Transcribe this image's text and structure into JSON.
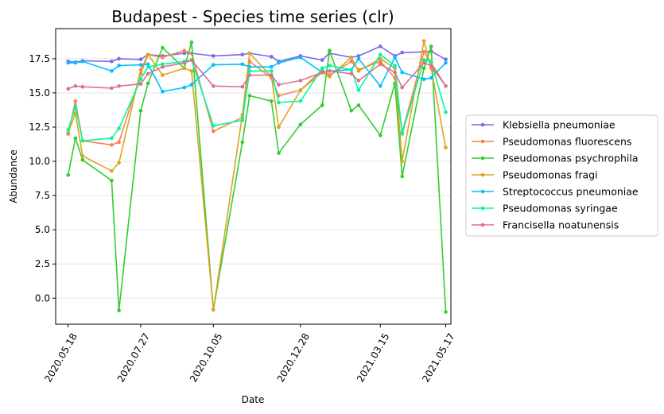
{
  "chart_data": {
    "type": "line",
    "title": "Budapest - Species time series (clr)",
    "xlabel": "Date",
    "ylabel": "Abundance",
    "xlim": [
      "2020-05-06",
      "2021-05-22"
    ],
    "ylim": [
      -1.9,
      19.7
    ],
    "y_ticks": [
      0.0,
      2.5,
      5.0,
      7.5,
      10.0,
      12.5,
      15.0,
      17.5
    ],
    "y_tick_labels": [
      "0.0",
      "2.5",
      "5.0",
      "7.5",
      "10.0",
      "12.5",
      "15.0",
      "17.5"
    ],
    "x_ticks": [
      "2020-05-18",
      "2020-07-27",
      "2020-10-05",
      "2020-12-28",
      "2021-03-15",
      "2021-05-17"
    ],
    "x_tick_labels": [
      "2020.05.18",
      "2020.07.27",
      "2020.10.05",
      "2020.12.28",
      "2021.03.15",
      "2021.05.17"
    ],
    "x_tick_rotation": 60,
    "grid": "horizontal",
    "legend_position": "outside-right",
    "x": [
      "2020-05-18",
      "2020-05-25",
      "2020-06-01",
      "2020-06-29",
      "2020-07-06",
      "2020-07-27",
      "2020-08-03",
      "2020-08-17",
      "2020-09-07",
      "2020-09-14",
      "2020-10-05",
      "2020-11-02",
      "2020-11-09",
      "2020-11-30",
      "2020-12-07",
      "2020-12-28",
      "2021-01-18",
      "2021-01-25",
      "2021-02-15",
      "2021-02-22",
      "2021-03-15",
      "2021-03-29",
      "2021-04-05",
      "2021-04-26",
      "2021-05-03",
      "2021-05-17"
    ],
    "series": [
      {
        "name": "Klebsiella pneumoniae",
        "color": "#7b68ee",
        "values": [
          17.3,
          17.25,
          17.35,
          17.3,
          17.5,
          17.45,
          17.8,
          17.7,
          17.9,
          17.9,
          17.7,
          17.8,
          17.9,
          17.65,
          17.3,
          17.7,
          17.4,
          17.9,
          17.6,
          17.7,
          18.4,
          17.7,
          17.95,
          18.0,
          18.05,
          17.45
        ]
      },
      {
        "name": "Pseudomonas fluorescens",
        "color": "#fa8050",
        "values": [
          12.0,
          14.4,
          11.5,
          11.2,
          11.4,
          16.4,
          17.8,
          17.6,
          18.1,
          17.9,
          12.2,
          13.2,
          17.3,
          16.1,
          14.8,
          15.2,
          16.7,
          16.3,
          17.3,
          16.7,
          17.3,
          16.1,
          12.1,
          18.0,
          17.2,
          15.5
        ]
      },
      {
        "name": "Pseudomonas psychrophila",
        "color": "#32cd32",
        "values": [
          9.0,
          11.7,
          10.1,
          8.6,
          -0.9,
          13.7,
          15.7,
          18.3,
          16.8,
          18.7,
          -0.85,
          11.4,
          14.8,
          14.4,
          10.6,
          12.7,
          14.1,
          18.1,
          13.7,
          14.1,
          11.9,
          15.7,
          8.9,
          16.8,
          18.4,
          -1.0
        ]
      },
      {
        "name": "Pseudomonas fragi",
        "color": "#daa520",
        "values": [
          12.1,
          13.5,
          10.4,
          9.3,
          9.9,
          16.7,
          17.8,
          16.3,
          16.8,
          16.6,
          -0.85,
          13.4,
          17.9,
          16.2,
          12.5,
          15.2,
          16.5,
          16.2,
          17.6,
          16.6,
          17.5,
          16.8,
          10.0,
          18.8,
          16.8,
          11.0
        ]
      },
      {
        "name": "Streptococcus pneumoniae",
        "color": "#00bfff",
        "values": [
          17.2,
          17.2,
          17.3,
          16.6,
          17.0,
          17.05,
          17.1,
          15.1,
          15.4,
          15.6,
          17.05,
          17.1,
          16.9,
          16.9,
          17.2,
          17.6,
          16.5,
          16.6,
          16.7,
          17.5,
          15.5,
          17.6,
          16.5,
          16.0,
          16.1,
          17.2
        ]
      },
      {
        "name": "Pseudomonas syringae",
        "color": "#00fa9a",
        "values": [
          12.3,
          14.0,
          11.5,
          11.7,
          12.4,
          16.0,
          16.9,
          17.1,
          17.3,
          17.4,
          12.6,
          13.0,
          16.6,
          16.6,
          14.3,
          14.4,
          16.8,
          17.0,
          16.7,
          15.2,
          17.8,
          17.0,
          12.0,
          17.4,
          17.3,
          13.6
        ]
      },
      {
        "name": "Francisella noatunensis",
        "color": "#db7093",
        "values": [
          15.3,
          15.5,
          15.45,
          15.35,
          15.5,
          15.65,
          16.4,
          16.9,
          17.2,
          17.4,
          15.5,
          15.45,
          16.3,
          16.3,
          15.6,
          15.9,
          16.5,
          16.6,
          16.4,
          15.9,
          17.1,
          16.5,
          15.4,
          17.2,
          17.0,
          15.5
        ]
      }
    ]
  }
}
